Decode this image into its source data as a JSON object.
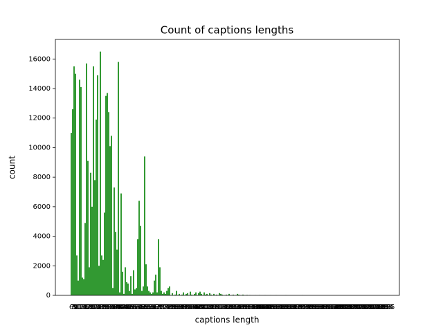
{
  "chart_data": {
    "type": "bar",
    "title": "Count of captions lengths",
    "xlabel": "captions length",
    "ylabel": "count",
    "color": "#008000",
    "categories": [
      6,
      7,
      8,
      9,
      10,
      11,
      12,
      13,
      14,
      15,
      16,
      17,
      18,
      19,
      20,
      21,
      22,
      23,
      24,
      25,
      26,
      27,
      28,
      29,
      30,
      31,
      32,
      33,
      34,
      35,
      36,
      37,
      38,
      39,
      40,
      41,
      42,
      43,
      44,
      45,
      46,
      47,
      48,
      49,
      50,
      51,
      52,
      53,
      54,
      55,
      56,
      57,
      58,
      59,
      60,
      61,
      62,
      63,
      64,
      65,
      66,
      67,
      68,
      69,
      70,
      71,
      72,
      73,
      74,
      75,
      76,
      77,
      78,
      79,
      80,
      81,
      82,
      83,
      84,
      85,
      86,
      87,
      88,
      89,
      90,
      91,
      92,
      93,
      94,
      95,
      96,
      97,
      98,
      99,
      100,
      101,
      102,
      103,
      104,
      105,
      106,
      107,
      108,
      109,
      110,
      111,
      112,
      113,
      114,
      115,
      116,
      117,
      118,
      119,
      120,
      121,
      122,
      123,
      124,
      125,
      126,
      127,
      128,
      129,
      130,
      131,
      132,
      133,
      134,
      135,
      136,
      137,
      138,
      139,
      140,
      141,
      142,
      143,
      144,
      145,
      146,
      147,
      148,
      149,
      150,
      151,
      152,
      153,
      154,
      155,
      156,
      157,
      158,
      159,
      160,
      161,
      162,
      163,
      164,
      165,
      166,
      167,
      168,
      169,
      170,
      171,
      172,
      173,
      174,
      175,
      176,
      177,
      178,
      179,
      180,
      181,
      182,
      183,
      184,
      185,
      186,
      187,
      188,
      189,
      190,
      191,
      192,
      193,
      194,
      195,
      196,
      197,
      198,
      199,
      200,
      201,
      202,
      203,
      204,
      205,
      206,
      207,
      208,
      209,
      210,
      211,
      212,
      213,
      214,
      215,
      216,
      217,
      218,
      219,
      220,
      221,
      222,
      223,
      224,
      225,
      226,
      227,
      228,
      229,
      230,
      231,
      232,
      233,
      234,
      235
    ],
    "values": [
      11000,
      12600,
      15500,
      15000,
      2700,
      1000,
      14600,
      14100,
      1200,
      1100,
      4900,
      15700,
      9100,
      1900,
      8300,
      6000,
      15500,
      7800,
      11900,
      14900,
      2000,
      16500,
      2700,
      2400,
      5600,
      13500,
      13700,
      12400,
      10100,
      10800,
      500,
      7300,
      4300,
      3100,
      15800,
      200,
      6900,
      1600,
      100,
      1900,
      900,
      800,
      300,
      1300,
      100,
      1700,
      400,
      500,
      3800,
      6400,
      4700,
      300,
      600,
      9400,
      2100,
      600,
      300,
      200,
      100,
      200,
      1000,
      1400,
      200,
      3800,
      1900,
      300,
      100,
      200,
      100,
      300,
      500,
      600,
      0,
      150,
      0,
      50,
      300,
      0,
      100,
      0,
      50,
      200,
      0,
      100,
      150,
      0,
      250,
      50,
      0,
      100,
      200,
      0,
      150,
      250,
      100,
      0,
      200,
      50,
      100,
      0,
      150,
      50,
      0,
      100,
      0,
      50,
      0,
      150,
      100,
      50,
      0,
      0,
      50,
      0,
      100,
      0,
      0,
      50,
      0,
      0,
      100,
      50,
      0,
      0,
      50,
      0,
      0,
      30,
      0,
      20,
      0,
      0,
      0,
      10,
      0,
      0,
      20,
      0,
      0,
      0,
      10,
      0,
      0,
      0,
      10,
      0,
      0,
      0,
      10,
      0,
      0,
      0,
      0,
      0,
      0,
      10,
      0,
      0,
      0,
      0,
      0,
      0,
      0,
      0,
      0,
      0,
      0,
      10,
      0,
      0,
      0,
      0,
      0,
      0,
      0,
      0,
      0,
      0,
      0,
      0,
      0,
      0,
      0,
      0,
      0,
      0,
      0,
      0,
      0,
      0,
      0,
      0,
      0,
      0,
      0,
      0,
      0,
      0,
      0,
      0,
      0,
      0,
      0,
      0,
      0,
      0,
      0,
      0,
      0,
      0,
      0,
      0,
      0,
      0,
      0,
      0,
      0,
      0,
      0,
      0,
      0,
      0,
      0,
      0,
      0,
      0,
      0,
      0,
      0,
      0
    ],
    "ylim": [
      0,
      17325
    ],
    "yticks": [
      0,
      2000,
      4000,
      6000,
      8000,
      10000,
      12000,
      14000,
      16000
    ]
  }
}
